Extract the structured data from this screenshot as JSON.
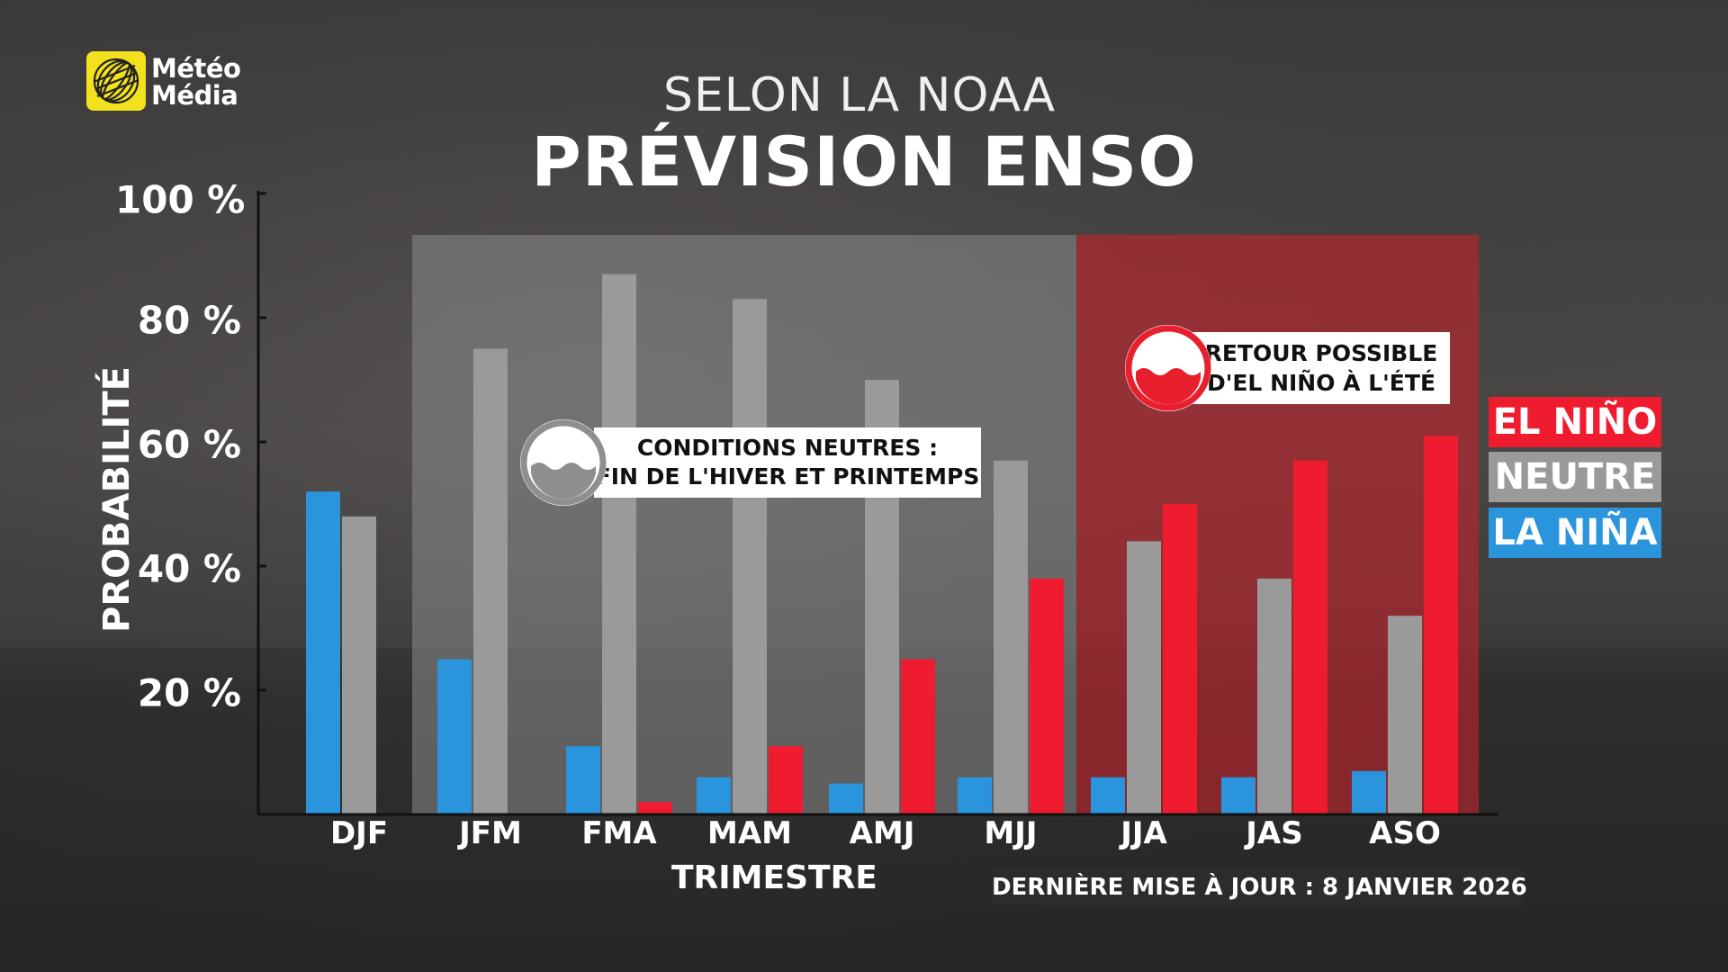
{
  "logo": {
    "line1": "Météo",
    "line2": "Média",
    "icon": "globe-icon",
    "color": "#f2e11c"
  },
  "header": {
    "subtitle": "SELON LA NOAA",
    "title": "PRÉVISION ENSO"
  },
  "callouts": {
    "neutral": {
      "line1": "CONDITIONS NEUTRES :",
      "line2": "FIN DE L'HIVER ET PRINTEMPS",
      "icon": "water-waves-icon"
    },
    "el_nino": {
      "line1": "RETOUR POSSIBLE",
      "line2": "D'EL NIÑO À L'ÉTÉ",
      "icon": "water-waves-icon"
    }
  },
  "footer": {
    "last_update": "DERNIÈRE MISE À JOUR : 8 JANVIER 2026"
  },
  "colors": {
    "la_nina": "#2a95dc",
    "neutre": "#9a9a9a",
    "el_nino": "#ee1c2e"
  },
  "chart_data": {
    "type": "bar",
    "title": "PRÉVISION ENSO",
    "subtitle": "SELON LA NOAA",
    "xlabel": "TRIMESTRE",
    "ylabel": "PROBABILITÉ",
    "ylim": [
      0,
      100
    ],
    "yticks": [
      20,
      40,
      60,
      80,
      100
    ],
    "ytick_labels": [
      "20 %",
      "40 %",
      "60 %",
      "80 %",
      "100 %"
    ],
    "categories": [
      "DJF",
      "JFM",
      "FMA",
      "MAM",
      "AMJ",
      "MJJ",
      "JJA",
      "JAS",
      "ASO"
    ],
    "series": [
      {
        "name": "LA NIÑA",
        "color": "#2a95dc",
        "values": [
          52,
          25,
          11,
          6,
          5,
          6,
          6,
          6,
          7
        ]
      },
      {
        "name": "NEUTRE",
        "color": "#9a9a9a",
        "values": [
          48,
          75,
          87,
          83,
          70,
          57,
          44,
          38,
          32
        ]
      },
      {
        "name": "EL NIÑO",
        "color": "#ee1c2e",
        "values": [
          0,
          0,
          2,
          11,
          25,
          38,
          50,
          57,
          61
        ]
      }
    ],
    "legend": {
      "position": "right",
      "items": [
        {
          "label": "EL NIÑO",
          "color": "#ee1c2e"
        },
        {
          "label": "NEUTRE",
          "color": "#9a9a9a"
        },
        {
          "label": "LA NIÑA",
          "color": "#2a95dc"
        }
      ]
    },
    "highlights": [
      {
        "label": "neutral period",
        "from": "JFM",
        "to": "MJJ",
        "color": "#8a8a8a"
      },
      {
        "label": "el niño period",
        "from": "JJA",
        "to": "ASO",
        "color": "#c0232c"
      }
    ],
    "grid": false
  }
}
